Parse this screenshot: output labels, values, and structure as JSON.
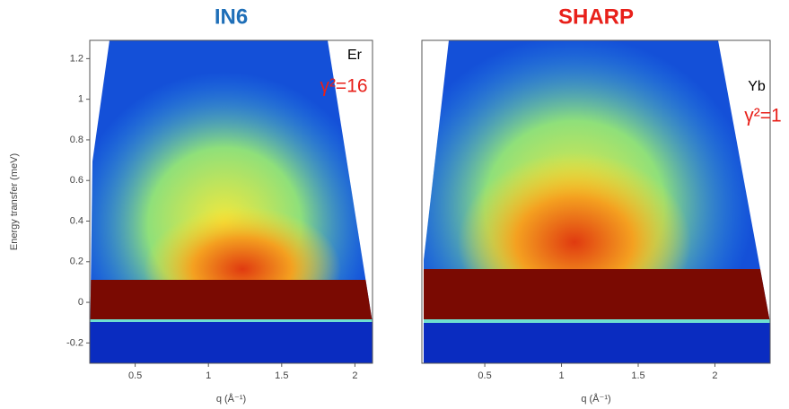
{
  "chart_data": [
    {
      "type": "heatmap",
      "title": "IN6",
      "title_color": "#1f6fb8",
      "xlabel": "q (Å⁻¹)",
      "ylabel": "Energy transfer (meV)",
      "xlim": [
        0.19,
        2.12
      ],
      "ylim": [
        -0.3,
        1.29
      ],
      "xticks": [
        0.5,
        1.0,
        1.5,
        2.0
      ],
      "yticks": [
        -0.2,
        0.0,
        0.2,
        0.4,
        0.6,
        0.8,
        1.0,
        1.2
      ],
      "annotations": [
        "Er",
        "γ²=16"
      ]
    },
    {
      "type": "heatmap",
      "title": "SHARP",
      "title_color": "#e8201a",
      "xlabel": "q (Å⁻¹)",
      "xlim": [
        0.09,
        2.36
      ],
      "ylim": [
        -0.3,
        1.29
      ],
      "xticks": [
        0.5,
        1.0,
        1.5,
        2.0
      ],
      "annotations": [
        "Yb",
        "γ²=1"
      ]
    }
  ]
}
